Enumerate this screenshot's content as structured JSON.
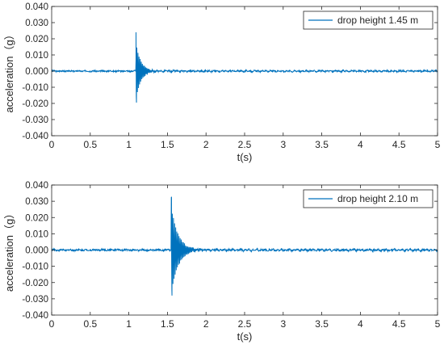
{
  "chart_data": [
    {
      "type": "line",
      "xlabel": "t(s)",
      "ylabel": "acceleration（g）",
      "xlim": [
        0,
        5
      ],
      "ylim": [
        -0.04,
        0.04
      ],
      "x_ticks": [
        0,
        0.5,
        1,
        1.5,
        2,
        2.5,
        3,
        3.5,
        4,
        4.5,
        5
      ],
      "x_tick_labels": [
        "0",
        "0.5",
        "1",
        "1.5",
        "2",
        "2.5",
        "3",
        "3.5",
        "4",
        "4.5",
        "5"
      ],
      "y_ticks": [
        -0.04,
        -0.03,
        -0.02,
        -0.01,
        0,
        0.01,
        0.02,
        0.03,
        0.04
      ],
      "y_tick_labels": [
        "-0.040",
        "-0.030",
        "-0.020",
        "-0.010",
        "0.000",
        "0.010",
        "0.020",
        "0.030",
        "0.040"
      ],
      "grid": false,
      "legend_position": "top-right",
      "series": [
        {
          "name": "drop height 1.45 m",
          "color": "#0072BD",
          "impact_time": 1.09,
          "peak_max": 0.024,
          "peak_min": -0.0195,
          "decay_s": 0.18,
          "noise": 0.0004
        }
      ]
    },
    {
      "type": "line",
      "xlabel": "t(s)",
      "ylabel": "acceleration（g）",
      "xlim": [
        0,
        5
      ],
      "ylim": [
        -0.04,
        0.04
      ],
      "x_ticks": [
        0,
        0.5,
        1,
        1.5,
        2,
        2.5,
        3,
        3.5,
        4,
        4.5,
        5
      ],
      "x_tick_labels": [
        "0",
        "0.5",
        "1",
        "1.5",
        "2",
        "2.5",
        "3",
        "3.5",
        "4",
        "4.5",
        "5"
      ],
      "y_ticks": [
        -0.04,
        -0.03,
        -0.02,
        -0.01,
        0,
        0.01,
        0.02,
        0.03,
        0.04
      ],
      "y_tick_labels": [
        "-0.040",
        "-0.030",
        "-0.020",
        "-0.010",
        "0.000",
        "0.010",
        "0.020",
        "0.030",
        "0.040"
      ],
      "grid": false,
      "legend_position": "top-right",
      "series": [
        {
          "name": "drop height 2.10 m",
          "color": "#0072BD",
          "impact_time": 1.55,
          "peak_max": 0.0325,
          "peak_min": -0.028,
          "decay_s": 0.25,
          "noise": 0.0005
        }
      ]
    }
  ]
}
